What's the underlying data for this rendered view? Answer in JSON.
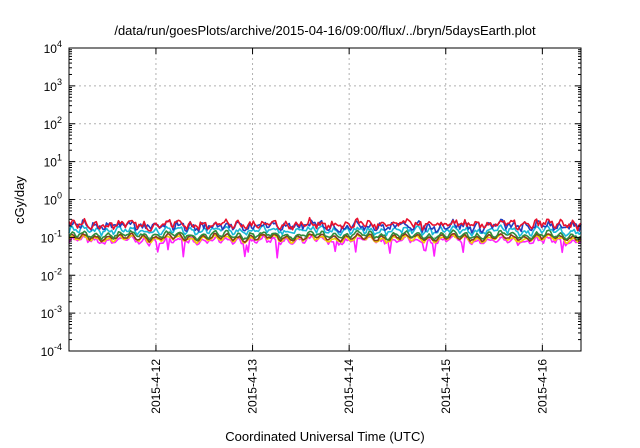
{
  "chart_data": {
    "type": "line",
    "title": "/data/run/goesPlots/archive/2015-04-16/09:00/flux/../bryn/5daysEarth.plot",
    "xlabel": "Coordinated Universal Time (UTC)",
    "ylabel": "cGy/day",
    "y_scale": "log",
    "ylim_exponents": [
      -4,
      4
    ],
    "y_ticks": [
      {
        "base": "10",
        "exp": "4"
      },
      {
        "base": "10",
        "exp": "3"
      },
      {
        "base": "10",
        "exp": "2"
      },
      {
        "base": "10",
        "exp": "1"
      },
      {
        "base": "10",
        "exp": "0"
      },
      {
        "base": "10",
        "exp": "-1"
      },
      {
        "base": "10",
        "exp": "-2"
      },
      {
        "base": "10",
        "exp": "-3"
      },
      {
        "base": "10",
        "exp": "-4"
      }
    ],
    "xlim_days": [
      11.1,
      16.4
    ],
    "x_ticks": [
      {
        "label": "2015-4-12",
        "day": 12
      },
      {
        "label": "2015-4-13",
        "day": 13
      },
      {
        "label": "2015-4-14",
        "day": 14
      },
      {
        "label": "2015-4-15",
        "day": 15
      },
      {
        "label": "2015-4-16",
        "day": 16
      }
    ],
    "grid": true,
    "series": [
      {
        "color": "#e8112d",
        "base": 0.22,
        "noise": 0.35,
        "dips": false
      },
      {
        "color": "#1f3fbf",
        "base": 0.2,
        "noise": 0.4,
        "dips": false
      },
      {
        "color": "#19b9d8",
        "base": 0.15,
        "noise": 0.25,
        "dips": false
      },
      {
        "color": "#2e8b3a",
        "base": 0.115,
        "noise": 0.15,
        "dips": false
      },
      {
        "color": "#8a3a1a",
        "base": 0.1,
        "noise": 0.12,
        "dips": false
      },
      {
        "color": "#f2d200",
        "base": 0.092,
        "noise": 0.12,
        "dips": false
      },
      {
        "color": "#ff20ff",
        "base": 0.082,
        "noise": 0.22,
        "dips": true
      }
    ]
  }
}
